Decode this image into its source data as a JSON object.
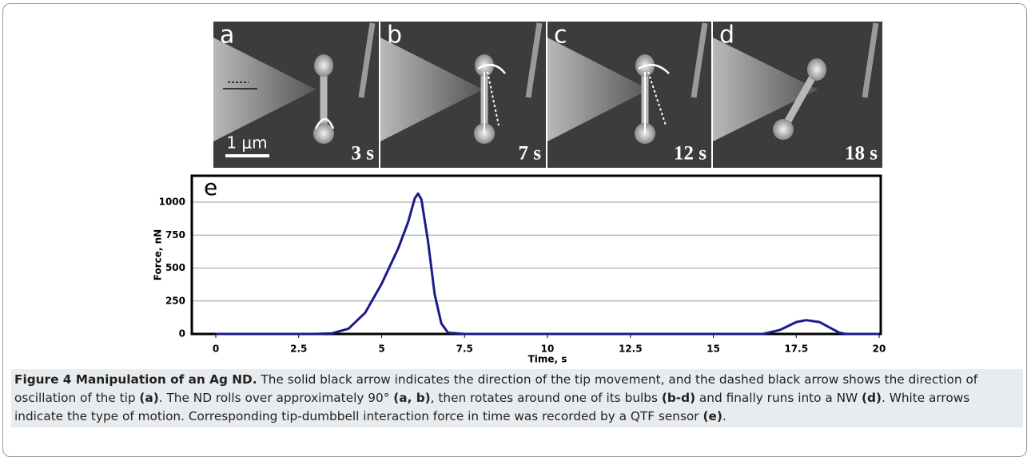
{
  "panels": [
    {
      "label": "a",
      "time": "3 s"
    },
    {
      "label": "b",
      "time": "7 s"
    },
    {
      "label": "c",
      "time": "12 s"
    },
    {
      "label": "d",
      "time": "18 s"
    }
  ],
  "scale_bar": "1 μm",
  "chart_data": {
    "type": "line",
    "panel_label": "e",
    "x_label": "Time, s",
    "y_label": "Force, nN",
    "x": [
      0,
      1,
      2,
      3,
      3.5,
      4,
      4.5,
      5,
      5.5,
      5.8,
      6,
      6.1,
      6.2,
      6.4,
      6.6,
      6.8,
      7,
      7.5,
      10,
      15,
      16.5,
      17,
      17.5,
      17.8,
      18.2,
      18.5,
      18.8,
      19,
      20
    ],
    "values": [
      0,
      0,
      0,
      0,
      5,
      40,
      160,
      380,
      650,
      850,
      1030,
      1065,
      1020,
      700,
      300,
      80,
      10,
      0,
      0,
      0,
      0,
      30,
      90,
      105,
      90,
      50,
      10,
      0,
      0
    ],
    "color": "#1a1a8c",
    "xlim": [
      0,
      20
    ],
    "xticks": [
      0,
      2.5,
      5,
      7.5,
      10,
      12.5,
      15,
      17.5,
      20
    ],
    "ylim": [
      0,
      1200
    ],
    "yticks": [
      0,
      250,
      500,
      750,
      1000
    ],
    "grid": true
  },
  "caption": [
    {
      "text": "Figure 4 Manipulation of an Ag ND.",
      "bold": true
    },
    {
      "text": " The solid black arrow indicates the direction of the tip movement, and the dashed black arrow shows the direction of oscillation of the tip ",
      "bold": false
    },
    {
      "text": "(a)",
      "bold": true
    },
    {
      "text": ". The ND rolls over approximately 90° ",
      "bold": false
    },
    {
      "text": "(a, b)",
      "bold": true
    },
    {
      "text": ", then rotates around one of its bulbs ",
      "bold": false
    },
    {
      "text": "(b-d)",
      "bold": true
    },
    {
      "text": " and finally runs into a NW ",
      "bold": false
    },
    {
      "text": "(d)",
      "bold": true
    },
    {
      "text": ". White arrows indicate the type of motion. Corresponding tip-dumbbell interaction force in time was recorded by a QTF sensor ",
      "bold": false
    },
    {
      "text": "(e)",
      "bold": true
    },
    {
      "text": ".",
      "bold": false
    }
  ]
}
